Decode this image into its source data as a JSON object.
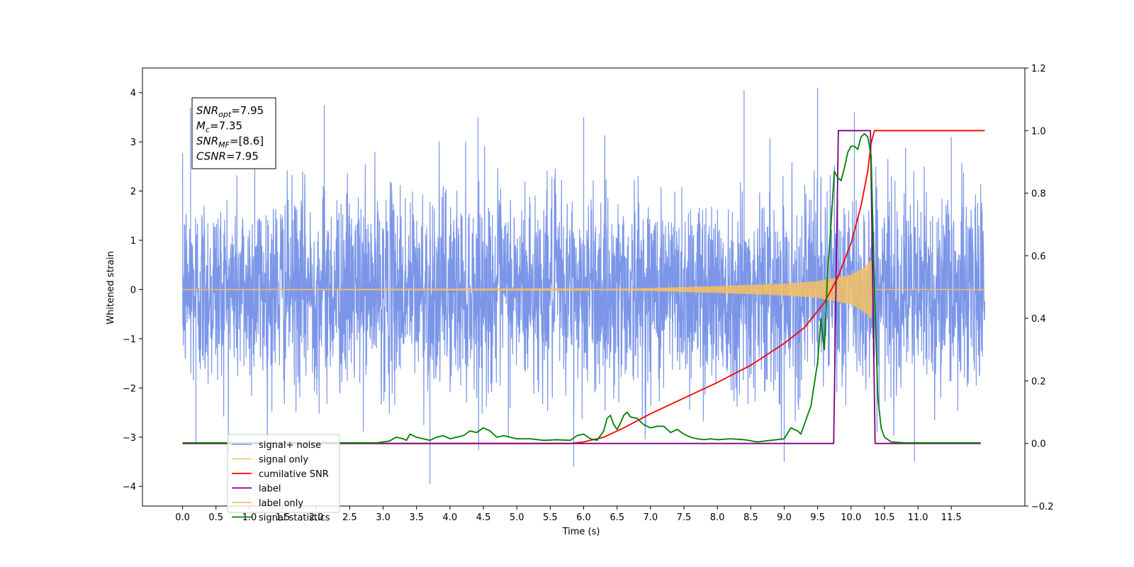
{
  "chart_data": {
    "type": "line",
    "xlabel": "Time (s)",
    "ylabel": "Whitened strain",
    "xlim": [
      -0.6,
      12.6
    ],
    "ylim": [
      -4.4,
      4.5
    ],
    "y2lim": [
      -0.2,
      1.2
    ],
    "x_ticks": [
      0.0,
      0.5,
      1.0,
      1.5,
      2.0,
      2.5,
      3.0,
      3.5,
      4.0,
      4.5,
      5.0,
      5.5,
      6.0,
      6.5,
      7.0,
      7.5,
      8.0,
      8.5,
      9.0,
      9.5,
      10.0,
      10.5,
      11.0,
      11.5
    ],
    "x_tick_labels": [
      "0.0",
      "0.5",
      "1.0",
      "1.5",
      "2.0",
      "2.5",
      "3.0",
      "3.5",
      "4.0",
      "4.5",
      "5.0",
      "5.5",
      "6.0",
      "6.5",
      "7.0",
      "7.5",
      "8.0",
      "8.5",
      "9.0",
      "9.5",
      "10.0",
      "10.5",
      "11.0",
      "11.5"
    ],
    "y_ticks": [
      -4,
      -3,
      -2,
      -1,
      0,
      1,
      2,
      3,
      4
    ],
    "y_tick_labels": [
      "−4",
      "−3",
      "−2",
      "−1",
      "0",
      "1",
      "2",
      "3",
      "4"
    ],
    "y2_ticks": [
      -0.2,
      0.0,
      0.2,
      0.4,
      0.6,
      0.8,
      1.0,
      1.2
    ],
    "y2_tick_labels": [
      "−0.2",
      "0.0",
      "0.2",
      "0.4",
      "0.6",
      "0.8",
      "1.0",
      "1.2"
    ],
    "annotation": {
      "lines": [
        {
          "main": "SNR",
          "sub": "opt",
          "rest": "=7.95"
        },
        {
          "main": "M",
          "sub": "c",
          "rest": "=7.35"
        },
        {
          "main": "SNR",
          "sub": "MF",
          "rest": "=[8.6]"
        },
        {
          "main": "CSNR",
          "sub": "",
          "rest": "=7.95"
        }
      ]
    },
    "legend_position": "lower left",
    "series": [
      {
        "name": "signal+ noise",
        "color": "#7b96e8",
        "axis": "left",
        "kind": "noise",
        "x_range": [
          0.0,
          12.0
        ],
        "std": 1.0,
        "approx_extremes": [
          {
            "x": 0.12,
            "y": 3.7
          },
          {
            "x": 0.2,
            "y": -3.1
          },
          {
            "x": 1.08,
            "y": 3.55
          },
          {
            "x": 2.12,
            "y": 3.75
          },
          {
            "x": 3.7,
            "y": -3.95
          },
          {
            "x": 4.42,
            "y": 3.5
          },
          {
            "x": 6.0,
            "y": 3.5
          },
          {
            "x": 5.85,
            "y": -3.6
          },
          {
            "x": 8.4,
            "y": 4.05
          },
          {
            "x": 9.5,
            "y": 4.1
          },
          {
            "x": 9.0,
            "y": -3.5
          },
          {
            "x": 10.95,
            "y": -3.5
          },
          {
            "x": 10.05,
            "y": 3.6
          },
          {
            "x": 11.5,
            "y": 3.1
          }
        ]
      },
      {
        "name": "signal only",
        "color": "#f5c063",
        "axis": "left",
        "kind": "chirp",
        "x_range": [
          0.0,
          12.0
        ],
        "envelope": [
          {
            "x": 0.0,
            "y": 0.0
          },
          {
            "x": 6.0,
            "y": 0.005
          },
          {
            "x": 7.0,
            "y": 0.03
          },
          {
            "x": 8.0,
            "y": 0.07
          },
          {
            "x": 9.0,
            "y": 0.12
          },
          {
            "x": 9.5,
            "y": 0.17
          },
          {
            "x": 10.0,
            "y": 0.3
          },
          {
            "x": 10.2,
            "y": 0.45
          },
          {
            "x": 10.3,
            "y": 0.6
          },
          {
            "x": 10.33,
            "y": 0.0
          },
          {
            "x": 12.0,
            "y": 0.0
          }
        ]
      },
      {
        "name": "cumilative SNR",
        "color": "#ff0000",
        "axis": "right",
        "points": [
          [
            0.0,
            0.0
          ],
          [
            5.8,
            0.0
          ],
          [
            6.0,
            0.005
          ],
          [
            6.3,
            0.02
          ],
          [
            6.6,
            0.05
          ],
          [
            7.0,
            0.095
          ],
          [
            7.5,
            0.145
          ],
          [
            8.0,
            0.195
          ],
          [
            8.5,
            0.25
          ],
          [
            9.0,
            0.32
          ],
          [
            9.3,
            0.37
          ],
          [
            9.6,
            0.45
          ],
          [
            9.8,
            0.53
          ],
          [
            10.0,
            0.64
          ],
          [
            10.15,
            0.76
          ],
          [
            10.25,
            0.87
          ],
          [
            10.3,
            0.96
          ],
          [
            10.35,
            1.0
          ],
          [
            12.0,
            1.0
          ]
        ]
      },
      {
        "name": "label",
        "color": "#800080",
        "axis": "right",
        "points": [
          [
            0.0,
            0.0
          ],
          [
            9.74,
            0.0
          ],
          [
            9.81,
            1.0
          ],
          [
            10.29,
            1.0
          ],
          [
            10.36,
            0.0
          ],
          [
            11.94,
            0.0
          ]
        ]
      },
      {
        "name": "label only",
        "color": "#f5c063",
        "axis": "right",
        "points": []
      },
      {
        "name": "signal statistics",
        "color": "#008000",
        "axis": "right",
        "points": [
          [
            0.0,
            0.002
          ],
          [
            2.9,
            0.002
          ],
          [
            3.0,
            0.005
          ],
          [
            3.1,
            0.008
          ],
          [
            3.15,
            0.015
          ],
          [
            3.2,
            0.02
          ],
          [
            3.3,
            0.015
          ],
          [
            3.35,
            0.01
          ],
          [
            3.4,
            0.03
          ],
          [
            3.5,
            0.02
          ],
          [
            3.6,
            0.015
          ],
          [
            3.7,
            0.01
          ],
          [
            3.8,
            0.02
          ],
          [
            3.9,
            0.025
          ],
          [
            4.0,
            0.015
          ],
          [
            4.2,
            0.025
          ],
          [
            4.3,
            0.04
          ],
          [
            4.4,
            0.035
          ],
          [
            4.5,
            0.05
          ],
          [
            4.6,
            0.04
          ],
          [
            4.7,
            0.02
          ],
          [
            4.8,
            0.025
          ],
          [
            5.0,
            0.015
          ],
          [
            5.2,
            0.015
          ],
          [
            5.4,
            0.01
          ],
          [
            5.6,
            0.012
          ],
          [
            5.8,
            0.01
          ],
          [
            5.9,
            0.025
          ],
          [
            6.0,
            0.03
          ],
          [
            6.1,
            0.015
          ],
          [
            6.2,
            0.01
          ],
          [
            6.3,
            0.04
          ],
          [
            6.35,
            0.08
          ],
          [
            6.4,
            0.09
          ],
          [
            6.45,
            0.06
          ],
          [
            6.5,
            0.045
          ],
          [
            6.55,
            0.065
          ],
          [
            6.6,
            0.09
          ],
          [
            6.65,
            0.1
          ],
          [
            6.7,
            0.085
          ],
          [
            6.8,
            0.08
          ],
          [
            6.9,
            0.06
          ],
          [
            7.0,
            0.05
          ],
          [
            7.1,
            0.055
          ],
          [
            7.2,
            0.055
          ],
          [
            7.3,
            0.035
          ],
          [
            7.4,
            0.045
          ],
          [
            7.5,
            0.03
          ],
          [
            7.6,
            0.02
          ],
          [
            7.7,
            0.015
          ],
          [
            7.8,
            0.012
          ],
          [
            7.9,
            0.015
          ],
          [
            8.0,
            0.012
          ],
          [
            8.2,
            0.015
          ],
          [
            8.4,
            0.012
          ],
          [
            8.6,
            0.005
          ],
          [
            8.8,
            0.01
          ],
          [
            9.0,
            0.015
          ],
          [
            9.1,
            0.05
          ],
          [
            9.2,
            0.04
          ],
          [
            9.25,
            0.03
          ],
          [
            9.3,
            0.06
          ],
          [
            9.4,
            0.12
          ],
          [
            9.5,
            0.26
          ],
          [
            9.55,
            0.4
          ],
          [
            9.6,
            0.3
          ],
          [
            9.65,
            0.55
          ],
          [
            9.7,
            0.7
          ],
          [
            9.75,
            0.87
          ],
          [
            9.8,
            0.85
          ],
          [
            9.85,
            0.84
          ],
          [
            9.9,
            0.88
          ],
          [
            9.95,
            0.93
          ],
          [
            10.0,
            0.95
          ],
          [
            10.05,
            0.95
          ],
          [
            10.1,
            0.94
          ],
          [
            10.15,
            0.98
          ],
          [
            10.2,
            0.99
          ],
          [
            10.25,
            0.98
          ],
          [
            10.3,
            0.92
          ],
          [
            10.35,
            0.5
          ],
          [
            10.4,
            0.15
          ],
          [
            10.45,
            0.05
          ],
          [
            10.5,
            0.02
          ],
          [
            10.6,
            0.005
          ],
          [
            10.8,
            0.002
          ],
          [
            11.94,
            0.002
          ]
        ]
      }
    ]
  }
}
